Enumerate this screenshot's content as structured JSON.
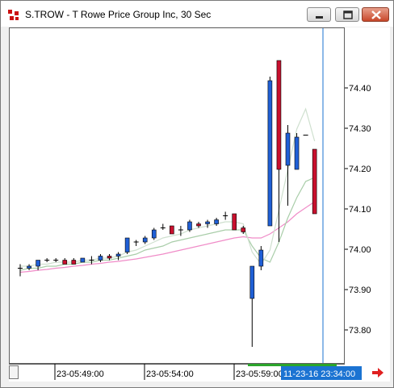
{
  "window": {
    "title": "S.TROW - T Rowe Price Group Inc, 30 Sec",
    "icon": "chart-app-icon",
    "controls": [
      "minimize-icon",
      "maximize-icon",
      "close-icon"
    ]
  },
  "chart_data": {
    "type": "candlestick",
    "symbol": "S.TROW",
    "interval": "30 Sec",
    "ylim": [
      73.72,
      74.55
    ],
    "y_ticks": [
      "74.40",
      "74.30",
      "74.20",
      "74.10",
      "74.00",
      "73.90",
      "73.80"
    ],
    "x_ticks": [
      "23-05:49:00",
      "23-05:54:00",
      "23-05:59:00"
    ],
    "crosshair_time_label": "11-23-16 23:34:00",
    "candles": [
      {
        "open": 73.955,
        "high": 73.965,
        "low": 73.935,
        "close": 73.955
      },
      {
        "open": 73.955,
        "high": 73.965,
        "low": 73.95,
        "close": 73.96
      },
      {
        "open": 73.96,
        "high": 73.975,
        "low": 73.95,
        "close": 73.975
      },
      {
        "open": 73.975,
        "high": 73.98,
        "low": 73.97,
        "close": 73.975
      },
      {
        "open": 73.975,
        "high": 73.98,
        "low": 73.97,
        "close": 73.975
      },
      {
        "open": 73.975,
        "high": 73.98,
        "low": 73.965,
        "close": 73.965
      },
      {
        "open": 73.975,
        "high": 73.98,
        "low": 73.965,
        "close": 73.965
      },
      {
        "open": 73.97,
        "high": 73.98,
        "low": 73.97,
        "close": 73.98
      },
      {
        "open": 73.975,
        "high": 73.985,
        "low": 73.965,
        "close": 73.975
      },
      {
        "open": 73.975,
        "high": 73.99,
        "low": 73.97,
        "close": 73.985
      },
      {
        "open": 73.985,
        "high": 73.99,
        "low": 73.975,
        "close": 73.98
      },
      {
        "open": 73.985,
        "high": 73.995,
        "low": 73.975,
        "close": 73.99
      },
      {
        "open": 73.995,
        "high": 74.03,
        "low": 73.99,
        "close": 74.03
      },
      {
        "open": 74.02,
        "high": 74.025,
        "low": 74.01,
        "close": 74.02
      },
      {
        "open": 74.02,
        "high": 74.035,
        "low": 74.015,
        "close": 74.03
      },
      {
        "open": 74.03,
        "high": 74.055,
        "low": 74.025,
        "close": 74.05
      },
      {
        "open": 74.055,
        "high": 74.065,
        "low": 74.05,
        "close": 74.055
      },
      {
        "open": 74.06,
        "high": 74.06,
        "low": 74.04,
        "close": 74.04
      },
      {
        "open": 74.05,
        "high": 74.06,
        "low": 74.035,
        "close": 74.05
      },
      {
        "open": 74.05,
        "high": 74.075,
        "low": 74.045,
        "close": 74.07
      },
      {
        "open": 74.065,
        "high": 74.07,
        "low": 74.055,
        "close": 74.06
      },
      {
        "open": 74.065,
        "high": 74.075,
        "low": 74.055,
        "close": 74.07
      },
      {
        "open": 74.065,
        "high": 74.08,
        "low": 74.06,
        "close": 74.075
      },
      {
        "open": 74.085,
        "high": 74.095,
        "low": 74.075,
        "close": 74.085
      },
      {
        "open": 74.09,
        "high": 74.09,
        "low": 74.05,
        "close": 74.05
      },
      {
        "open": 74.055,
        "high": 74.06,
        "low": 74.04,
        "close": 74.045
      },
      {
        "open": 73.88,
        "high": 73.96,
        "low": 73.76,
        "close": 73.96
      },
      {
        "open": 73.96,
        "high": 74.01,
        "low": 73.95,
        "close": 74.0
      },
      {
        "open": 74.06,
        "high": 74.43,
        "low": 74.06,
        "close": 74.42
      },
      {
        "open": 74.47,
        "high": 74.47,
        "low": 74.02,
        "close": 74.2
      },
      {
        "open": 74.21,
        "high": 74.31,
        "low": 74.11,
        "close": 74.29
      },
      {
        "open": 74.2,
        "high": 74.29,
        "low": 74.2,
        "close": 74.28
      },
      {
        "open": 74.285,
        "high": 74.285,
        "low": 74.285,
        "close": 74.285
      },
      {
        "open": 74.25,
        "high": 74.25,
        "low": 74.09,
        "close": 74.09
      }
    ],
    "ma_fast": [
      73.96,
      73.96,
      73.965,
      73.965,
      73.97,
      73.97,
      73.97,
      73.975,
      73.975,
      73.98,
      73.98,
      73.985,
      73.995,
      74.0,
      74.01,
      74.02,
      74.03,
      74.035,
      74.04,
      74.05,
      74.055,
      74.06,
      74.065,
      74.07,
      74.07,
      74.065,
      73.995,
      73.965,
      74.0,
      74.1,
      74.2,
      74.3,
      74.35,
      74.27
    ],
    "ma_mid": [
      73.95,
      73.955,
      73.955,
      73.96,
      73.96,
      73.965,
      73.965,
      73.97,
      73.97,
      73.975,
      73.975,
      73.98,
      73.985,
      73.99,
      74.0,
      74.005,
      74.01,
      74.02,
      74.025,
      74.03,
      74.035,
      74.04,
      74.045,
      74.05,
      74.05,
      74.05,
      74.01,
      73.98,
      73.97,
      74.02,
      74.08,
      74.13,
      74.17,
      74.18
    ],
    "ma_slow": [
      73.945,
      73.947,
      73.95,
      73.952,
      73.955,
      73.957,
      73.96,
      73.962,
      73.965,
      73.967,
      73.97,
      73.972,
      73.975,
      73.978,
      73.982,
      73.986,
      73.99,
      73.995,
      74.0,
      74.005,
      74.01,
      74.015,
      74.02,
      74.025,
      74.03,
      74.033,
      74.03,
      74.03,
      74.04,
      74.055,
      74.07,
      74.09,
      74.105,
      74.12
    ],
    "colors": {
      "up_candle": "#1f5fd6",
      "down_candle": "#c8102e",
      "ma_fast": "#cfe0cf",
      "ma_mid": "#a9cda9",
      "ma_slow": "#f08cc8",
      "crosshair": "#1b73d2",
      "time_label_bg": "#1b73d2",
      "volume_bar": "#2aa52a"
    }
  }
}
